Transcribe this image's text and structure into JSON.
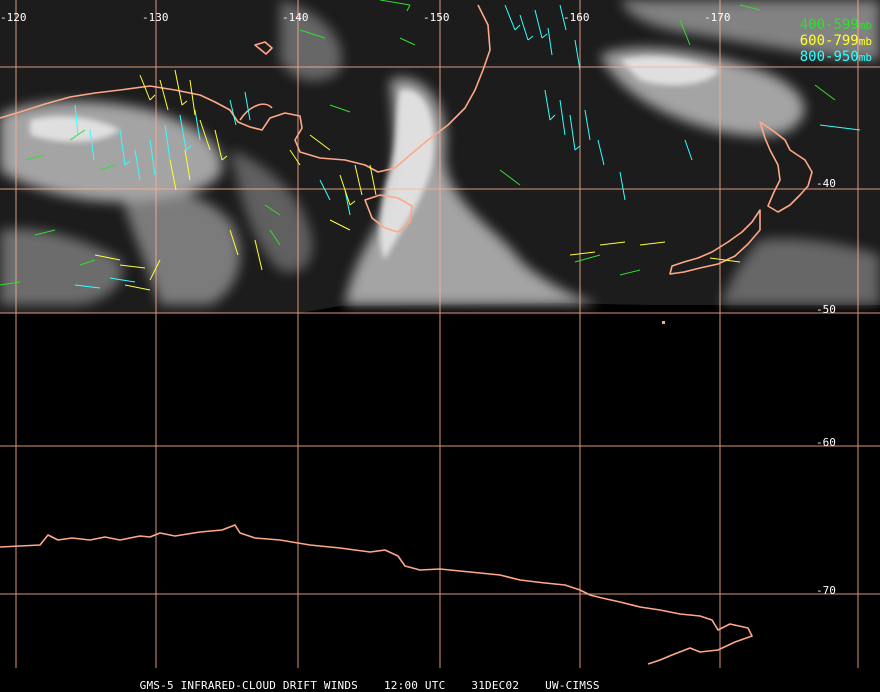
{
  "longitude_labels": [
    "-120",
    "-130",
    "-140",
    "-150",
    "-160",
    "-170"
  ],
  "latitude_labels": [
    "-40",
    "-50",
    "-60",
    "-70"
  ],
  "legend": [
    {
      "label": "400-599",
      "unit": "mb",
      "color": "#33dd33"
    },
    {
      "label": "600-799",
      "unit": "mb",
      "color": "#ffff33"
    },
    {
      "label": "800-950",
      "unit": "mb",
      "color": "#33ffff"
    }
  ],
  "footer": {
    "product": "GMS-5 INFRARED-CLOUD DRIFT WINDS",
    "time": "12:00 UTC",
    "date": "31DEC02",
    "source": "UW-CIMSS"
  },
  "colors": {
    "background": "#000000",
    "grid": "#ffb090",
    "coastline": "#ffa888",
    "clouds": "#e6e6e6"
  }
}
